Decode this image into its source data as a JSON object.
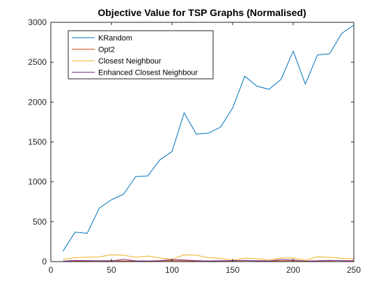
{
  "chart_data": {
    "type": "line",
    "title": "Objective Value for TSP Graphs (Normalised)",
    "xlabel": "",
    "ylabel": "",
    "xlim": [
      0,
      250
    ],
    "ylim": [
      0,
      3000
    ],
    "xticks": [
      0,
      50,
      100,
      150,
      200,
      250
    ],
    "yticks": [
      0,
      500,
      1000,
      1500,
      2000,
      2500,
      3000
    ],
    "grid": false,
    "legend_position": "top-left",
    "x": [
      10,
      20,
      30,
      40,
      50,
      60,
      70,
      80,
      90,
      100,
      110,
      120,
      130,
      140,
      150,
      160,
      170,
      180,
      190,
      200,
      210,
      220,
      230,
      240,
      250
    ],
    "series": [
      {
        "name": "KRandom",
        "color": "#0072BD",
        "values": [
          130,
          370,
          355,
          670,
          775,
          845,
          1065,
          1075,
          1275,
          1380,
          1865,
          1600,
          1610,
          1685,
          1925,
          2325,
          2200,
          2160,
          2285,
          2640,
          2225,
          2590,
          2605,
          2860,
          2965
        ]
      },
      {
        "name": "Opt2",
        "color": "#D95319",
        "values": [
          5,
          8,
          6,
          10,
          12,
          8,
          9,
          7,
          10,
          12,
          10,
          8,
          9,
          11,
          10,
          12,
          11,
          9,
          10,
          12,
          8,
          10,
          11,
          12,
          13
        ]
      },
      {
        "name": "Closest Neighbour",
        "color": "#EDB120",
        "values": [
          30,
          50,
          55,
          60,
          85,
          80,
          55,
          70,
          45,
          30,
          85,
          80,
          50,
          40,
          15,
          45,
          35,
          20,
          45,
          45,
          15,
          60,
          55,
          40,
          35
        ]
      },
      {
        "name": "Enhanced Closest Neighbour",
        "color": "#7E2F8E",
        "values": [
          5,
          15,
          12,
          10,
          8,
          28,
          10,
          8,
          12,
          25,
          20,
          12,
          8,
          10,
          12,
          15,
          10,
          8,
          25,
          20,
          5,
          10,
          15,
          12,
          10
        ]
      }
    ]
  }
}
